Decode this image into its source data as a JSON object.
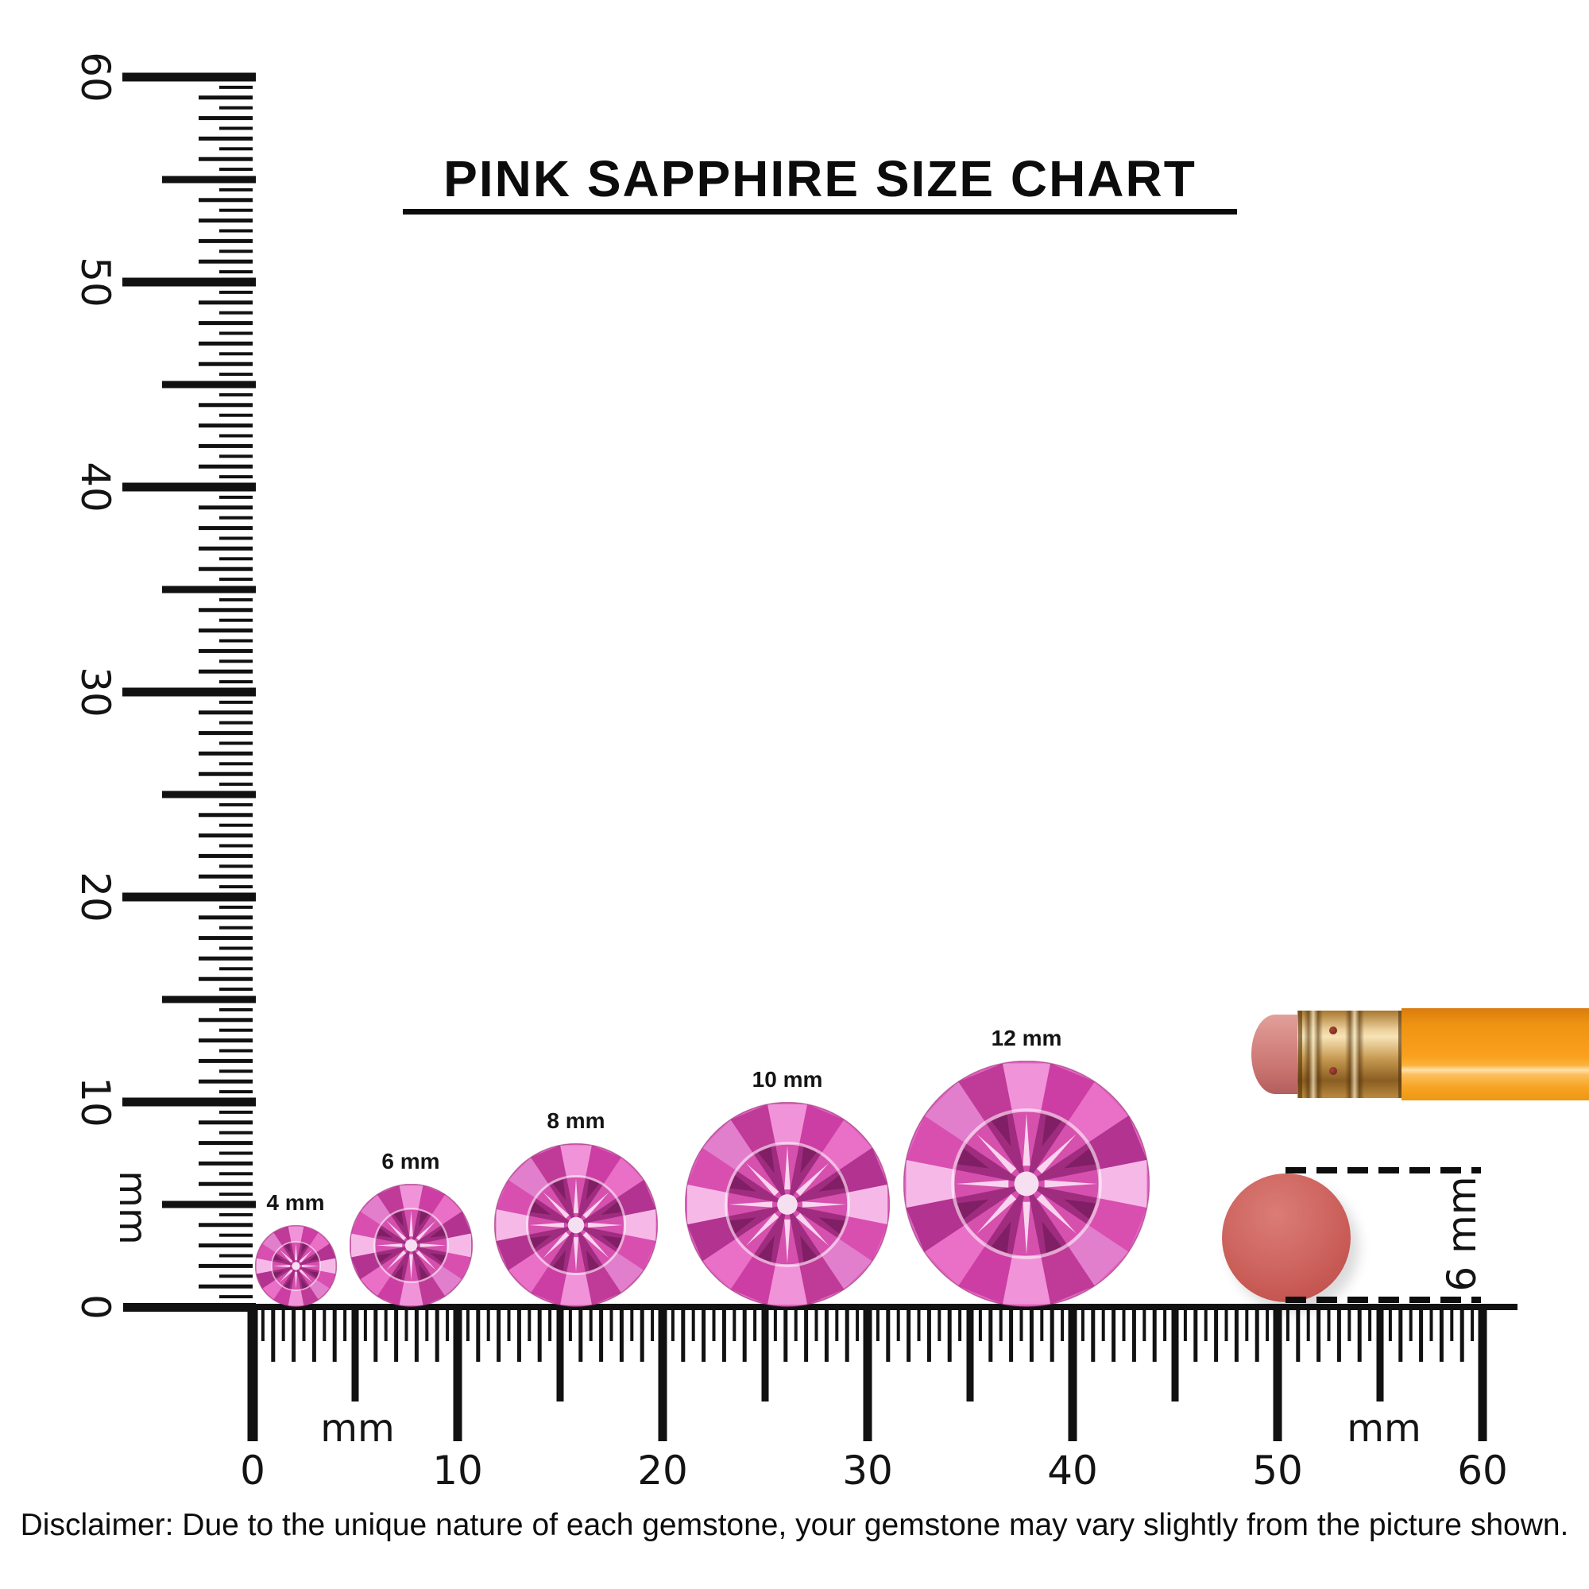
{
  "title": {
    "text": "PINK SAPPHIRE SIZE CHART"
  },
  "rulers": {
    "vertical": {
      "unit": "mm",
      "labels": [
        "0",
        "10",
        "20",
        "30",
        "40",
        "50",
        "60"
      ]
    },
    "horizontal": {
      "unit_left": "mm",
      "unit_right": "mm",
      "labels": [
        "0",
        "10",
        "20",
        "30",
        "40",
        "50",
        "60"
      ]
    }
  },
  "gems": [
    {
      "label": "4 mm",
      "size_mm": 4
    },
    {
      "label": "6 mm",
      "size_mm": 6
    },
    {
      "label": "8 mm",
      "size_mm": 8
    },
    {
      "label": "10 mm",
      "size_mm": 10
    },
    {
      "label": "12 mm",
      "size_mm": 12
    }
  ],
  "comparison": {
    "label": "6 mm",
    "size_mm": 6,
    "circle_color": "#cf6661"
  },
  "pencil": {
    "body_color": "#f9a01d",
    "ferrule_color": "#c79a52",
    "eraser_color": "#d68884"
  },
  "colors": {
    "ink": "#111111",
    "gem_base": "#e065c0",
    "gem_outer": [
      "#f093d8",
      "#cc3ea3",
      "#e96fc7",
      "#b23390",
      "#f6b9e7",
      "#d94fb0",
      "#e27fcd",
      "#c03a98"
    ],
    "gem_inner": [
      "#d650ae",
      "#a02c80"
    ],
    "gem_ray": "#f9d4ee",
    "gem_center": "#f5dff0"
  },
  "disclaimer": {
    "text": "Disclaimer: Due to the unique nature of each gemstone, your gemstone may vary slightly from the picture shown."
  }
}
